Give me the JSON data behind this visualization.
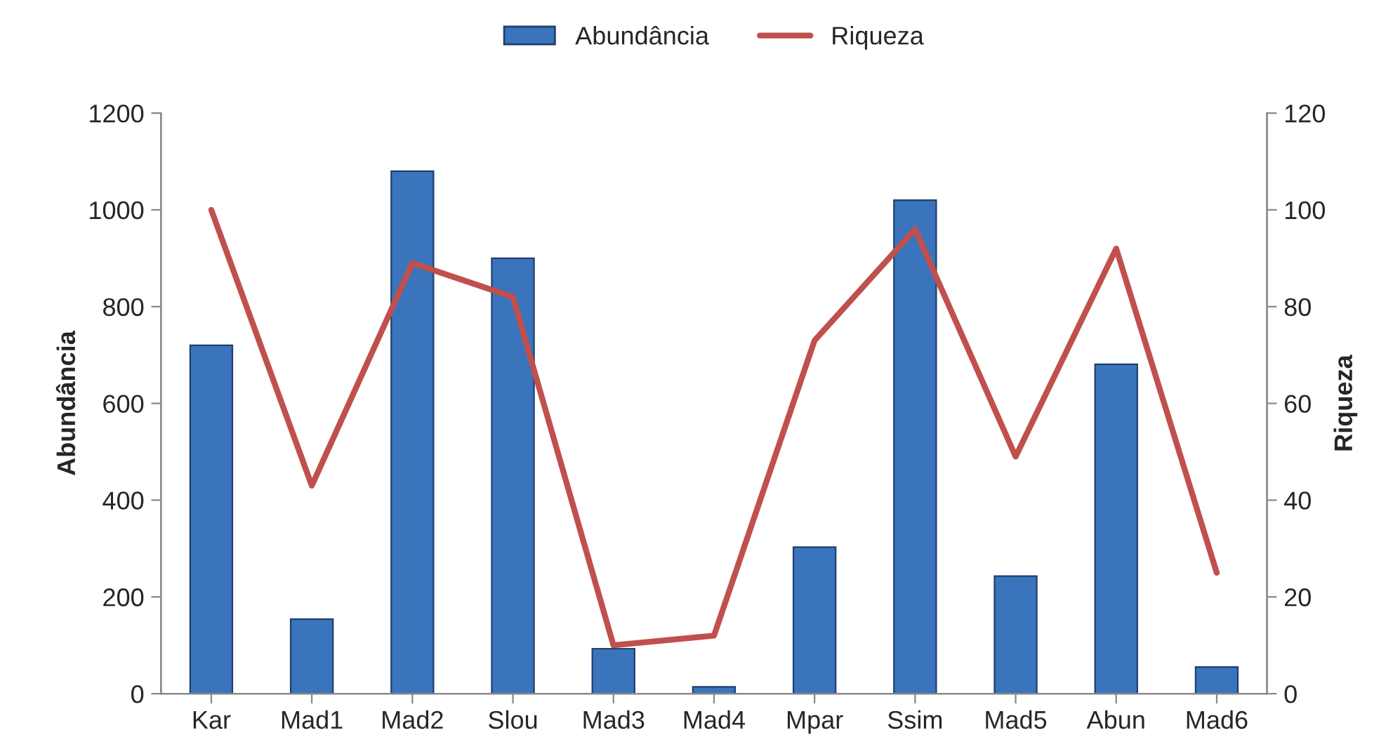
{
  "chart_data": {
    "type": "bar",
    "categories": [
      "Kar",
      "Mad1",
      "Mad2",
      "Slou",
      "Mad3",
      "Mad4",
      "Mpar",
      "Ssim",
      "Mad5",
      "Abun",
      "Mad6"
    ],
    "series": [
      {
        "name": "Abundância",
        "color": "#3a74bd",
        "values": [
          720,
          154,
          1080,
          900,
          93,
          14,
          303,
          1020,
          243,
          681,
          55
        ]
      },
      {
        "name": "Riqueza",
        "type": "line",
        "axis": "y2",
        "color": "#c0504d",
        "values": [
          100,
          43,
          89,
          82,
          10,
          12,
          73,
          96,
          49,
          92,
          25
        ]
      }
    ],
    "ylabel": "Abundância",
    "y2label": "Riqueza",
    "ylim": [
      0,
      1200
    ],
    "yticks": [
      0,
      200,
      400,
      600,
      800,
      1000,
      1200
    ],
    "y2lim": [
      0,
      120
    ],
    "y2ticks": [
      0,
      20,
      40,
      60,
      80,
      100,
      120
    ],
    "legend": "top",
    "grid": false,
    "marker": "none",
    "line_style": "solid"
  }
}
